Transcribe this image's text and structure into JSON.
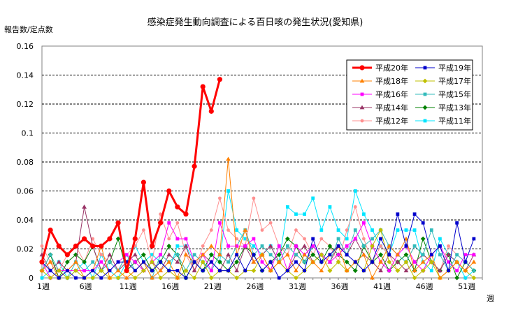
{
  "chart_data": {
    "type": "line",
    "title": "感染症発生動向調査による百日咳の発生状況(愛知県)",
    "ylabel": "報告数/定点数",
    "xlabel": "週",
    "ylim": [
      0,
      0.16
    ],
    "yticks": [
      "0",
      "0.02",
      "0.04",
      "0.06",
      "0.08",
      "0.1",
      "0.12",
      "0.14",
      "0.16"
    ],
    "xticks": [
      {
        "week": 1,
        "label": "1週"
      },
      {
        "week": 6,
        "label": "6週"
      },
      {
        "week": 11,
        "label": "11週"
      },
      {
        "week": 16,
        "label": "16週"
      },
      {
        "week": 21,
        "label": "21週"
      },
      {
        "week": 26,
        "label": "26週"
      },
      {
        "week": 31,
        "label": "31週"
      },
      {
        "week": 36,
        "label": "36週"
      },
      {
        "week": 41,
        "label": "41週"
      },
      {
        "week": 46,
        "label": "46週"
      },
      {
        "week": 51,
        "label": "51週"
      }
    ],
    "grid": "horizontal dashed",
    "legend_position": "top-right",
    "x": [
      1,
      2,
      3,
      4,
      5,
      6,
      7,
      8,
      9,
      10,
      11,
      12,
      13,
      14,
      15,
      16,
      17,
      18,
      19,
      20,
      21,
      22,
      23,
      24,
      25,
      26,
      27,
      28,
      29,
      30,
      31,
      32,
      33,
      34,
      35,
      36,
      37,
      38,
      39,
      40,
      41,
      42,
      43,
      44,
      45,
      46,
      47,
      48,
      49,
      50,
      51,
      52,
      53
    ],
    "series": [
      {
        "name": "平成20年",
        "color": "#ff0000",
        "marker": "circle",
        "bold": true,
        "values": [
          0.011,
          0.033,
          0.022,
          0.016,
          0.022,
          0.027,
          0.022,
          0.022,
          0.027,
          0.038,
          0.005,
          0.027,
          0.066,
          0.022,
          0.038,
          0.06,
          0.049,
          0.044,
          0.077,
          0.132,
          0.115,
          0.137,
          null,
          null,
          null,
          null,
          null,
          null,
          null,
          null,
          null,
          null,
          null,
          null,
          null,
          null,
          null,
          null,
          null,
          null,
          null,
          null,
          null,
          null,
          null,
          null,
          null,
          null,
          null,
          null,
          null,
          null,
          null
        ]
      },
      {
        "name": "平成19年",
        "color": "#0000cc",
        "marker": "square",
        "values": [
          0.011,
          0.005,
          0,
          0.005,
          0,
          0,
          0.005,
          0,
          0.005,
          0.011,
          0.011,
          0.005,
          0.011,
          0.005,
          0.011,
          0.005,
          0.005,
          0,
          0.011,
          0.005,
          0.011,
          0.005,
          0.005,
          0.016,
          0.005,
          0.016,
          0.005,
          0.011,
          0,
          0.005,
          0.011,
          0.005,
          0.027,
          0.011,
          0.016,
          0.022,
          0.016,
          0.011,
          0.005,
          0.011,
          0.027,
          0.016,
          0.044,
          0.022,
          0.044,
          0.038,
          0.016,
          0.022,
          0.005,
          0.038,
          0.011,
          0.027,
          null
        ]
      },
      {
        "name": "平成18年",
        "color": "#ff8000",
        "marker": "triangle",
        "values": [
          0.005,
          0.011,
          0,
          0.005,
          0.011,
          0,
          0.005,
          0.022,
          0,
          0.005,
          0,
          0.005,
          0.011,
          0,
          0.005,
          0.011,
          0,
          0.016,
          0.011,
          0.016,
          0.022,
          0.016,
          0.082,
          0.016,
          0.033,
          0.011,
          0.016,
          0.005,
          0.011,
          0.016,
          0.005,
          0.016,
          0.011,
          0.005,
          0.016,
          0.022,
          0.005,
          0.011,
          0.016,
          0,
          0.011,
          0.022,
          0.016,
          0.027,
          0.005,
          0.011,
          0.016,
          0,
          0.005,
          0.011,
          0.005,
          0.011,
          null
        ]
      },
      {
        "name": "平成17年",
        "color": "#c0c000",
        "marker": "diamond",
        "values": [
          0.005,
          0,
          0.005,
          0,
          0.005,
          0,
          0,
          0.005,
          0,
          0,
          0.005,
          0,
          0.005,
          0.011,
          0,
          0.005,
          0,
          0.005,
          0,
          0.011,
          0,
          0.005,
          0.005,
          0,
          0.005,
          0.005,
          0.016,
          0.005,
          0.011,
          0.005,
          0,
          0.005,
          0.011,
          0.016,
          0.005,
          0.011,
          0.005,
          0.011,
          0.005,
          0.022,
          0.033,
          0.011,
          0.005,
          0.011,
          0,
          0.005,
          0.011,
          0,
          0.005,
          0.011,
          0.005,
          0,
          null
        ]
      },
      {
        "name": "平成16年",
        "color": "#ff00ff",
        "marker": "square",
        "values": [
          0.011,
          0,
          0.005,
          0.005,
          0.005,
          0.005,
          0.005,
          0.011,
          0.005,
          0.011,
          0.016,
          0.011,
          0.005,
          0.011,
          0.016,
          0.038,
          0.027,
          0.027,
          0.011,
          0.016,
          0.005,
          0.038,
          0.022,
          0.022,
          0.022,
          0.027,
          0.011,
          0.005,
          0.022,
          0.005,
          0.022,
          0.016,
          0.022,
          0.016,
          0.011,
          0.016,
          0.022,
          0.027,
          0.038,
          0.022,
          0.011,
          0.005,
          0.016,
          0.022,
          0.011,
          0.005,
          0.016,
          0.022,
          0.011,
          0.005,
          0.016,
          0.016,
          null
        ]
      },
      {
        "name": "平成15年",
        "color": "#33bbbb",
        "marker": "square",
        "values": [
          0.005,
          0.016,
          0.005,
          0,
          0.011,
          0.005,
          0.011,
          0.005,
          0.011,
          0.005,
          0.016,
          0.005,
          0.011,
          0,
          0.016,
          0.011,
          0.016,
          0.005,
          0.016,
          0.011,
          0.005,
          0.016,
          0.011,
          0.022,
          0.033,
          0.016,
          0.022,
          0.016,
          0.011,
          0.022,
          0.016,
          0.011,
          0.022,
          0.016,
          0.011,
          0.027,
          0.016,
          0.033,
          0.022,
          0.027,
          0.033,
          0.022,
          0.016,
          0.011,
          0.022,
          0.016,
          0.033,
          0.016,
          0.005,
          0.016,
          0.011,
          0.005,
          null
        ]
      },
      {
        "name": "平成14年",
        "color": "#993366",
        "marker": "triangle",
        "values": [
          0.016,
          0.005,
          0.011,
          0.005,
          0.011,
          0.049,
          0.022,
          0.005,
          0.016,
          0.005,
          0.011,
          0.016,
          0.005,
          0.011,
          0.005,
          0.016,
          0.011,
          0.022,
          0.005,
          0.016,
          0.011,
          0.005,
          0.016,
          0.005,
          0.022,
          0.011,
          0.016,
          0.022,
          0.011,
          0.005,
          0.016,
          0.022,
          0.011,
          0.016,
          0.011,
          0.022,
          0.016,
          0.027,
          0.016,
          0.011,
          0.005,
          0.016,
          0.011,
          0.005,
          0.011,
          0.016,
          0.011,
          0.005,
          0.016,
          0.011,
          0.005,
          0.016,
          null
        ]
      },
      {
        "name": "平成13年",
        "color": "#008000",
        "marker": "diamond",
        "values": [
          0.005,
          0.016,
          0,
          0.011,
          0.016,
          0.011,
          0.022,
          0.005,
          0.011,
          0.027,
          0.005,
          0.011,
          0.016,
          0.005,
          0.011,
          0.022,
          0.016,
          0,
          0.011,
          0.005,
          0.016,
          0.011,
          0.005,
          0.011,
          0.022,
          0.016,
          0.005,
          0.011,
          0.016,
          0.027,
          0.022,
          0.011,
          0.016,
          0.011,
          0.022,
          0.016,
          0.011,
          0.005,
          0.022,
          0.011,
          0.016,
          0.005,
          0.011,
          0.016,
          0.005,
          0.027,
          0.011,
          0.005,
          0.016,
          0,
          0.011,
          0.005,
          null
        ]
      },
      {
        "name": "平成12年",
        "color": "#ff9090",
        "marker": "circle",
        "values": [
          0.022,
          0.011,
          0.005,
          0.016,
          0.022,
          0.011,
          0.027,
          0.016,
          0.011,
          0.005,
          0.016,
          0.022,
          0.033,
          0.011,
          0.044,
          0.027,
          0.038,
          0.016,
          0.005,
          0.022,
          0.033,
          0.055,
          0.033,
          0.027,
          0.022,
          0.055,
          0.033,
          0.038,
          0.022,
          0.016,
          0.033,
          0.027,
          0.016,
          0.027,
          0.022,
          0.011,
          0.033,
          0.049,
          0.027,
          0.011,
          0.022,
          0.016,
          0.005,
          0.011,
          0.022,
          0.016,
          0.011,
          0.005,
          0.022,
          0.016,
          0.011,
          0.005,
          null
        ]
      },
      {
        "name": "平成11年",
        "color": "#00e5ff",
        "marker": "square",
        "values": [
          0,
          0.005,
          0.011,
          0,
          0.005,
          0.011,
          0,
          0.016,
          0.005,
          0,
          0.011,
          0.022,
          0.011,
          0.016,
          0.011,
          0.005,
          0.022,
          0.022,
          0.011,
          0.005,
          0.016,
          0.011,
          0.06,
          0.033,
          0.027,
          0.022,
          0.016,
          0.022,
          0.011,
          0.049,
          0.044,
          0.044,
          0.055,
          0.033,
          0.049,
          0.033,
          0.027,
          0.06,
          0.044,
          0.033,
          0.022,
          0.016,
          0.033,
          0.033,
          0.033,
          0.011,
          0.005,
          0.027,
          0.016,
          0.011,
          0,
          0.005,
          null
        ]
      }
    ]
  }
}
